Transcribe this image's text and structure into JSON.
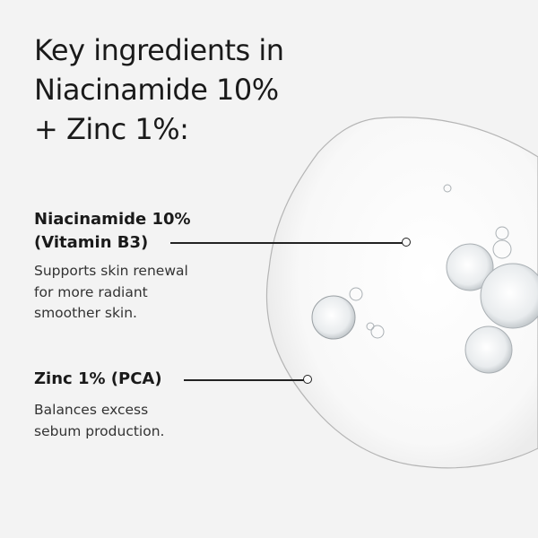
{
  "title": {
    "lines": [
      "Key ingredients in",
      "Niacinamide 10%",
      "+ Zinc 1%:"
    ]
  },
  "ingredients": [
    {
      "name_lines": [
        "Niacinamide 10%",
        "(Vitamin B3)"
      ],
      "description_lines": [
        "Supports skin renewal",
        "for more radiant",
        "smoother skin."
      ]
    },
    {
      "name_lines": [
        "Zinc 1% (PCA)"
      ],
      "description_lines": [
        "Balances excess",
        "sebum production."
      ]
    }
  ],
  "colors": {
    "background": "#f3f3f3",
    "text": "#1a1a1a",
    "line": "#222222"
  }
}
